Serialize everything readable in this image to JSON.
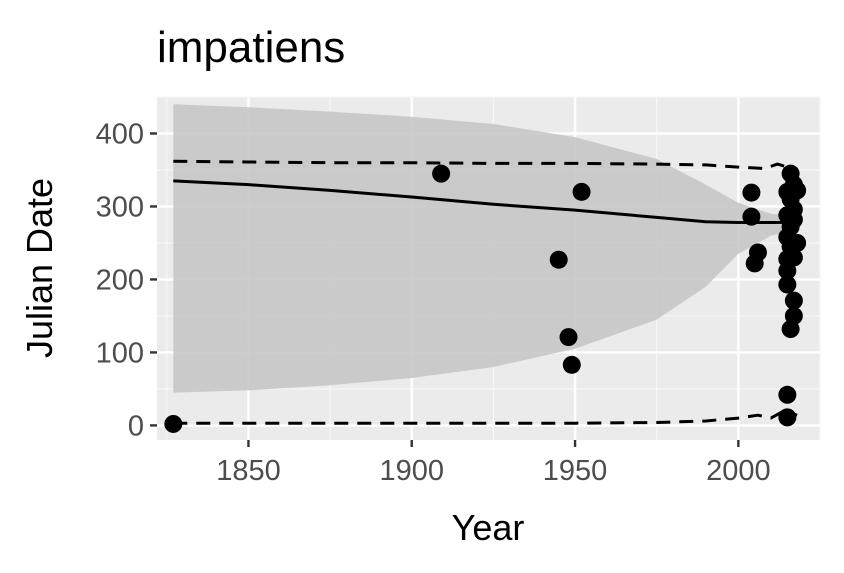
{
  "chart_data": {
    "type": "scatter",
    "title": "impatiens",
    "xlabel": "Year",
    "ylabel": "Julian Date",
    "xlim": [
      1822,
      2025
    ],
    "ylim": [
      -20,
      450
    ],
    "xticks": [
      1850,
      1900,
      1950,
      2000
    ],
    "yticks": [
      0,
      100,
      200,
      300,
      400
    ],
    "grid": true,
    "background": "#ebebeb",
    "colors": {
      "points": "#000000",
      "ribbon": "#c6c6c6",
      "trend": "#000000",
      "bounds": "#000000"
    },
    "points": [
      {
        "x": 1827,
        "y": 2
      },
      {
        "x": 1909,
        "y": 345
      },
      {
        "x": 1945,
        "y": 227
      },
      {
        "x": 1948,
        "y": 121
      },
      {
        "x": 1949,
        "y": 83
      },
      {
        "x": 1952,
        "y": 320
      },
      {
        "x": 2004,
        "y": 319
      },
      {
        "x": 2004,
        "y": 286
      },
      {
        "x": 2005,
        "y": 222
      },
      {
        "x": 2006,
        "y": 237
      },
      {
        "x": 2015,
        "y": 42
      },
      {
        "x": 2015,
        "y": 11
      },
      {
        "x": 2015,
        "y": 320
      },
      {
        "x": 2015,
        "y": 288
      },
      {
        "x": 2015,
        "y": 258
      },
      {
        "x": 2015,
        "y": 228
      },
      {
        "x": 2015,
        "y": 212
      },
      {
        "x": 2015,
        "y": 193
      },
      {
        "x": 2016,
        "y": 345
      },
      {
        "x": 2016,
        "y": 310
      },
      {
        "x": 2016,
        "y": 272
      },
      {
        "x": 2016,
        "y": 245
      },
      {
        "x": 2016,
        "y": 132
      },
      {
        "x": 2017,
        "y": 330
      },
      {
        "x": 2017,
        "y": 296
      },
      {
        "x": 2017,
        "y": 282
      },
      {
        "x": 2017,
        "y": 230
      },
      {
        "x": 2017,
        "y": 171
      },
      {
        "x": 2017,
        "y": 150
      },
      {
        "x": 2018,
        "y": 322
      },
      {
        "x": 2018,
        "y": 250
      }
    ],
    "trend": [
      {
        "x": 1827,
        "y": 335
      },
      {
        "x": 1850,
        "y": 330
      },
      {
        "x": 1875,
        "y": 322
      },
      {
        "x": 1900,
        "y": 313
      },
      {
        "x": 1925,
        "y": 303
      },
      {
        "x": 1950,
        "y": 295
      },
      {
        "x": 1975,
        "y": 285
      },
      {
        "x": 1990,
        "y": 279
      },
      {
        "x": 2000,
        "y": 278
      },
      {
        "x": 2018,
        "y": 278
      }
    ],
    "ribbon_upper": [
      {
        "x": 1827,
        "y": 440
      },
      {
        "x": 1850,
        "y": 436
      },
      {
        "x": 1875,
        "y": 430
      },
      {
        "x": 1900,
        "y": 423
      },
      {
        "x": 1925,
        "y": 413
      },
      {
        "x": 1950,
        "y": 395
      },
      {
        "x": 1975,
        "y": 365
      },
      {
        "x": 1990,
        "y": 330
      },
      {
        "x": 2000,
        "y": 305
      },
      {
        "x": 2010,
        "y": 290
      },
      {
        "x": 2018,
        "y": 287
      }
    ],
    "ribbon_lower": [
      {
        "x": 1827,
        "y": 45
      },
      {
        "x": 1850,
        "y": 48
      },
      {
        "x": 1875,
        "y": 55
      },
      {
        "x": 1900,
        "y": 65
      },
      {
        "x": 1925,
        "y": 80
      },
      {
        "x": 1950,
        "y": 105
      },
      {
        "x": 1975,
        "y": 145
      },
      {
        "x": 1990,
        "y": 190
      },
      {
        "x": 2000,
        "y": 235
      },
      {
        "x": 2010,
        "y": 260
      },
      {
        "x": 2018,
        "y": 268
      }
    ],
    "upper_bound": [
      {
        "x": 1827,
        "y": 362
      },
      {
        "x": 1850,
        "y": 361
      },
      {
        "x": 1875,
        "y": 360
      },
      {
        "x": 1900,
        "y": 360
      },
      {
        "x": 1925,
        "y": 359
      },
      {
        "x": 1950,
        "y": 359
      },
      {
        "x": 1975,
        "y": 358
      },
      {
        "x": 1990,
        "y": 357
      },
      {
        "x": 2000,
        "y": 354
      },
      {
        "x": 2008,
        "y": 352
      },
      {
        "x": 2012,
        "y": 358
      },
      {
        "x": 2018,
        "y": 350
      }
    ],
    "lower_bound": [
      {
        "x": 1827,
        "y": 3
      },
      {
        "x": 1850,
        "y": 3
      },
      {
        "x": 1875,
        "y": 3
      },
      {
        "x": 1900,
        "y": 3
      },
      {
        "x": 1925,
        "y": 3
      },
      {
        "x": 1950,
        "y": 3
      },
      {
        "x": 1975,
        "y": 4
      },
      {
        "x": 1990,
        "y": 6
      },
      {
        "x": 2000,
        "y": 10
      },
      {
        "x": 2006,
        "y": 14
      },
      {
        "x": 2010,
        "y": 10
      },
      {
        "x": 2014,
        "y": 20
      },
      {
        "x": 2018,
        "y": 14
      }
    ]
  }
}
